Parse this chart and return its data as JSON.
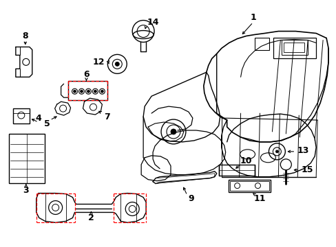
{
  "background_color": "#ffffff",
  "line_color": "#000000",
  "red_color": "#ff0000",
  "fig_width": 4.89,
  "fig_height": 3.6,
  "dpi": 100
}
